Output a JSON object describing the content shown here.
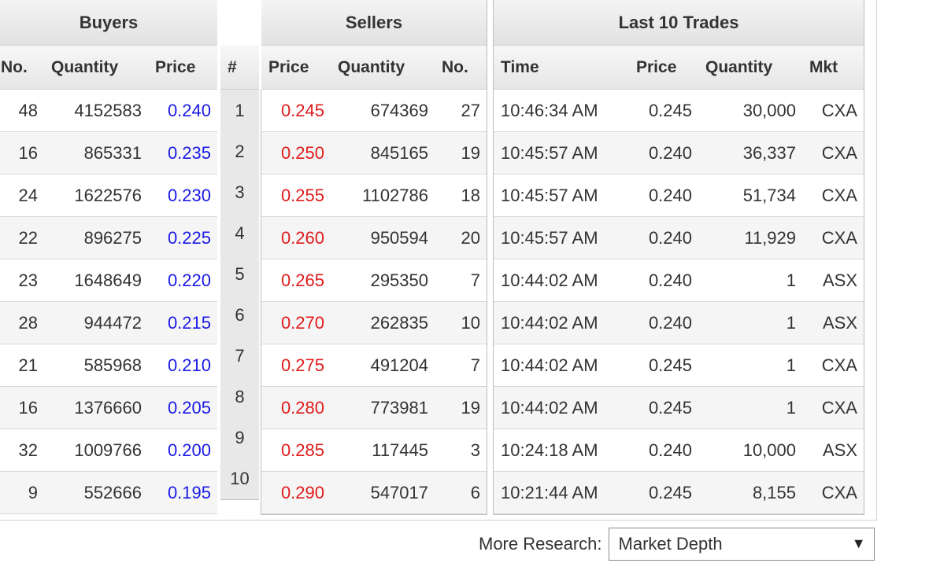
{
  "buyers": {
    "title": "Buyers",
    "headers": {
      "no": "No.",
      "quantity": "Quantity",
      "price": "Price"
    },
    "rows": [
      {
        "no": "48",
        "quantity": "4152583",
        "price": "0.240"
      },
      {
        "no": "16",
        "quantity": "865331",
        "price": "0.235"
      },
      {
        "no": "24",
        "quantity": "1622576",
        "price": "0.230"
      },
      {
        "no": "22",
        "quantity": "896275",
        "price": "0.225"
      },
      {
        "no": "23",
        "quantity": "1648649",
        "price": "0.220"
      },
      {
        "no": "28",
        "quantity": "944472",
        "price": "0.215"
      },
      {
        "no": "21",
        "quantity": "585968",
        "price": "0.210"
      },
      {
        "no": "16",
        "quantity": "1376660",
        "price": "0.205"
      },
      {
        "no": "32",
        "quantity": "1009766",
        "price": "0.200"
      },
      {
        "no": "9",
        "quantity": "552666",
        "price": "0.195"
      }
    ]
  },
  "index": {
    "header": "#",
    "values": [
      "1",
      "2",
      "3",
      "4",
      "5",
      "6",
      "7",
      "8",
      "9",
      "10"
    ]
  },
  "sellers": {
    "title": "Sellers",
    "headers": {
      "price": "Price",
      "quantity": "Quantity",
      "no": "No."
    },
    "rows": [
      {
        "price": "0.245",
        "quantity": "674369",
        "no": "27"
      },
      {
        "price": "0.250",
        "quantity": "845165",
        "no": "19"
      },
      {
        "price": "0.255",
        "quantity": "1102786",
        "no": "18"
      },
      {
        "price": "0.260",
        "quantity": "950594",
        "no": "20"
      },
      {
        "price": "0.265",
        "quantity": "295350",
        "no": "7"
      },
      {
        "price": "0.270",
        "quantity": "262835",
        "no": "10"
      },
      {
        "price": "0.275",
        "quantity": "491204",
        "no": "7"
      },
      {
        "price": "0.280",
        "quantity": "773981",
        "no": "19"
      },
      {
        "price": "0.285",
        "quantity": "117445",
        "no": "3"
      },
      {
        "price": "0.290",
        "quantity": "547017",
        "no": "6"
      }
    ]
  },
  "trades": {
    "title": "Last 10 Trades",
    "headers": {
      "time": "Time",
      "price": "Price",
      "quantity": "Quantity",
      "mkt": "Mkt"
    },
    "rows": [
      {
        "time": "10:46:34 AM",
        "price": "0.245",
        "quantity": "30,000",
        "mkt": "CXA"
      },
      {
        "time": "10:45:57 AM",
        "price": "0.240",
        "quantity": "36,337",
        "mkt": "CXA"
      },
      {
        "time": "10:45:57 AM",
        "price": "0.240",
        "quantity": "51,734",
        "mkt": "CXA"
      },
      {
        "time": "10:45:57 AM",
        "price": "0.240",
        "quantity": "11,929",
        "mkt": "CXA"
      },
      {
        "time": "10:44:02 AM",
        "price": "0.240",
        "quantity": "1",
        "mkt": "ASX"
      },
      {
        "time": "10:44:02 AM",
        "price": "0.240",
        "quantity": "1",
        "mkt": "ASX"
      },
      {
        "time": "10:44:02 AM",
        "price": "0.245",
        "quantity": "1",
        "mkt": "CXA"
      },
      {
        "time": "10:44:02 AM",
        "price": "0.245",
        "quantity": "1",
        "mkt": "CXA"
      },
      {
        "time": "10:24:18 AM",
        "price": "0.240",
        "quantity": "10,000",
        "mkt": "ASX"
      },
      {
        "time": "10:21:44 AM",
        "price": "0.245",
        "quantity": "8,155",
        "mkt": "CXA"
      }
    ]
  },
  "footer": {
    "label": "More Research:",
    "selected": "Market Depth",
    "arrow_icon": "dropdown-arrow-icon"
  },
  "colors": {
    "buy_price": "#1a1ae6",
    "sell_price": "#e01b1b"
  }
}
